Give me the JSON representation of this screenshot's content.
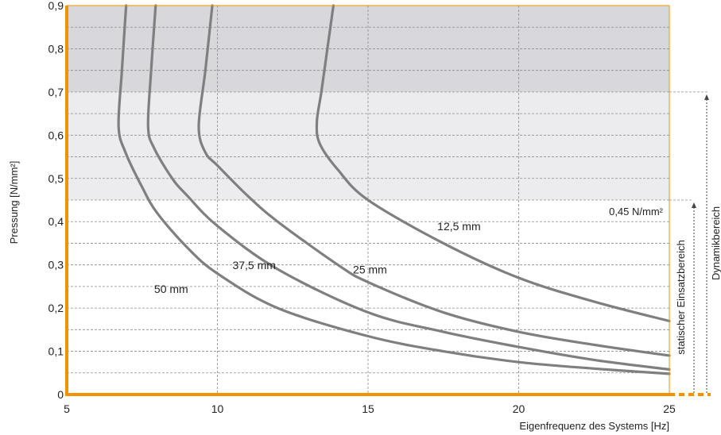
{
  "chart_data": {
    "type": "line",
    "xlabel": "Eigenfrequenz des Systems [Hz]",
    "ylabel": "Pressung [N/mm²]",
    "xlim": [
      5,
      25
    ],
    "ylim": [
      0,
      0.9
    ],
    "x_ticks": [
      "5",
      "10",
      "15",
      "20",
      "25"
    ],
    "y_ticks": [
      "0",
      "0,1",
      "0,2",
      "0,3",
      "0,4",
      "0,5",
      "0,6",
      "0,7",
      "0,8",
      "0,9"
    ],
    "grid": true,
    "regions": [
      {
        "from": 0.7,
        "to": 0.9,
        "color": "#d8d8dc"
      },
      {
        "from": 0.45,
        "to": 0.7,
        "color": "#ececef"
      }
    ],
    "threshold": {
      "value": 0.45,
      "label": "0,45 N/mm²"
    },
    "ranges": [
      {
        "label": "statischer Einsatzbereich",
        "from": 0,
        "to": 0.45
      },
      {
        "label": "Dynamikbereich",
        "from": 0,
        "to": 0.7
      }
    ],
    "series": [
      {
        "name": "50 mm",
        "color": "#7f7f7f",
        "points": [
          [
            6.97,
            0.9
          ],
          [
            6.83,
            0.75
          ],
          [
            6.72,
            0.62
          ],
          [
            6.95,
            0.56
          ],
          [
            7.5,
            0.48
          ],
          [
            8.0,
            0.42
          ],
          [
            9.0,
            0.34
          ],
          [
            10.0,
            0.28
          ],
          [
            12.0,
            0.2
          ],
          [
            15.0,
            0.135
          ],
          [
            17.5,
            0.1
          ],
          [
            20.0,
            0.075
          ],
          [
            22.5,
            0.06
          ],
          [
            25.0,
            0.048
          ]
        ]
      },
      {
        "name": "37,5 mm",
        "color": "#7f7f7f",
        "points": [
          [
            7.95,
            0.9
          ],
          [
            7.8,
            0.75
          ],
          [
            7.7,
            0.62
          ],
          [
            7.9,
            0.57
          ],
          [
            8.5,
            0.5
          ],
          [
            9.0,
            0.46
          ],
          [
            10.0,
            0.39
          ],
          [
            12.0,
            0.29
          ],
          [
            15.0,
            0.19
          ],
          [
            17.5,
            0.145
          ],
          [
            20.0,
            0.11
          ],
          [
            22.5,
            0.08
          ],
          [
            25.0,
            0.058
          ]
        ]
      },
      {
        "name": "25 mm",
        "color": "#7f7f7f",
        "points": [
          [
            9.83,
            0.9
          ],
          [
            9.6,
            0.75
          ],
          [
            9.38,
            0.62
          ],
          [
            9.6,
            0.56
          ],
          [
            10.0,
            0.53
          ],
          [
            11.0,
            0.46
          ],
          [
            12.0,
            0.4
          ],
          [
            14.0,
            0.3
          ],
          [
            15.0,
            0.26
          ],
          [
            17.5,
            0.19
          ],
          [
            20.0,
            0.145
          ],
          [
            22.5,
            0.115
          ],
          [
            25.0,
            0.09
          ]
        ]
      },
      {
        "name": "12,5 mm",
        "color": "#7f7f7f",
        "points": [
          [
            13.85,
            0.9
          ],
          [
            13.65,
            0.8
          ],
          [
            13.45,
            0.7
          ],
          [
            13.3,
            0.63
          ],
          [
            13.4,
            0.58
          ],
          [
            14.0,
            0.52
          ],
          [
            15.0,
            0.45
          ],
          [
            17.5,
            0.35
          ],
          [
            20.0,
            0.27
          ],
          [
            22.5,
            0.215
          ],
          [
            25.0,
            0.17
          ]
        ]
      }
    ],
    "curve_labels": [
      {
        "text": "50 mm",
        "x": 7.9,
        "y": 0.235
      },
      {
        "text": "37,5 mm",
        "x": 10.5,
        "y": 0.29
      },
      {
        "text": "25 mm",
        "x": 14.5,
        "y": 0.28
      },
      {
        "text": "12,5 mm",
        "x": 17.3,
        "y": 0.38
      }
    ]
  },
  "colors": {
    "axis": "#f39200",
    "grid": "#8c8c8c",
    "curve": "#7f7f7f",
    "marker": "#444444"
  }
}
